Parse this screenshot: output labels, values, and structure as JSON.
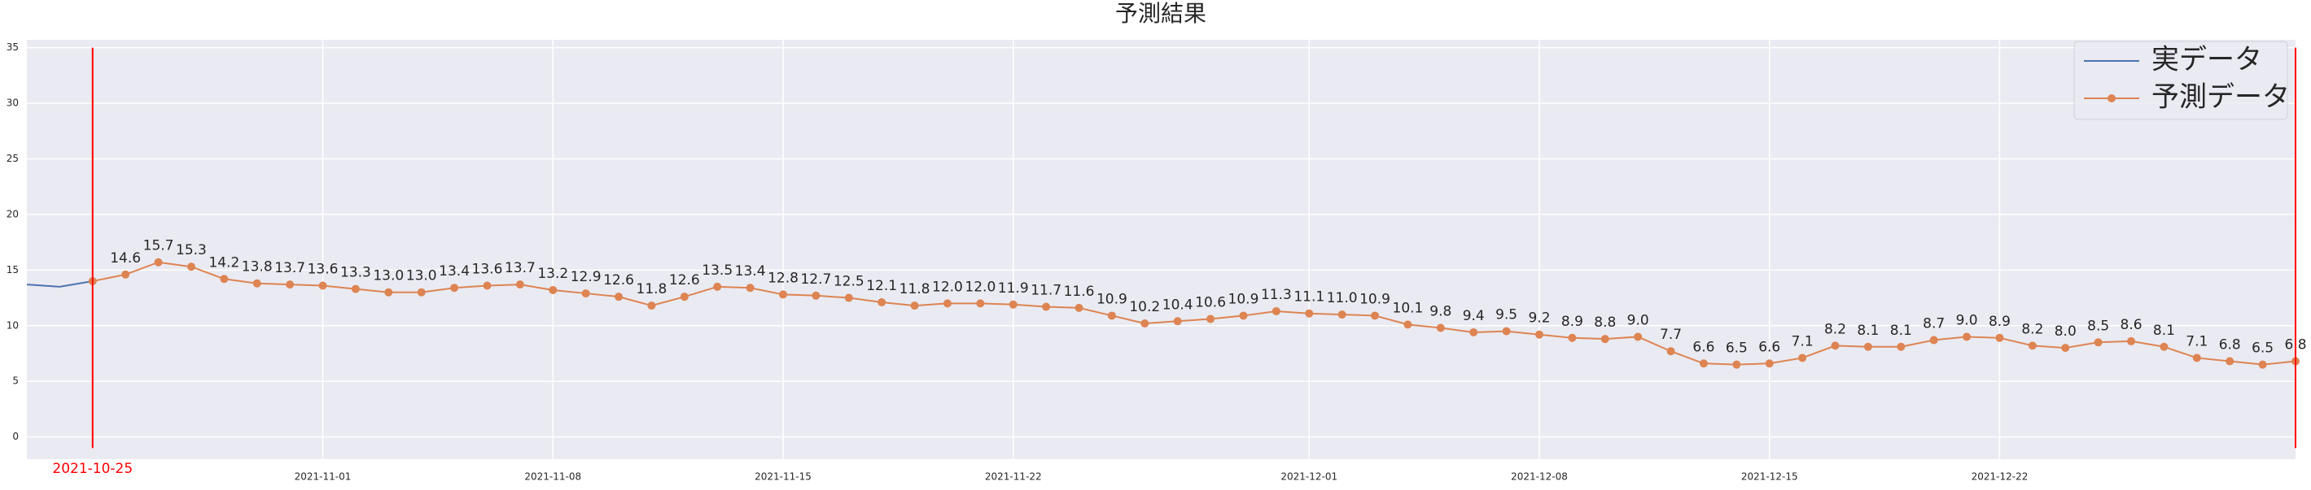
{
  "chart_data": {
    "type": "line",
    "title": "予測結果",
    "xlim": [
      "2021-10-23",
      "2021-12-31"
    ],
    "xticks": [
      "2021-11-01",
      "2021-11-08",
      "2021-11-15",
      "2021-11-22",
      "2021-12-01",
      "2021-12-08",
      "2021-12-15",
      "2021-12-22"
    ],
    "ylim": [
      -2,
      35.7
    ],
    "yticks": [
      0,
      5,
      10,
      15,
      20,
      25,
      30,
      35
    ],
    "grid": true,
    "legend": "upper right",
    "series": [
      {
        "name": "実データ",
        "color": "#4c72b0",
        "marker": false,
        "x": [
          "2021-10-23",
          "2021-10-24",
          "2021-10-25"
        ],
        "values": [
          13.7,
          13.5,
          14.0
        ]
      },
      {
        "name": "予測データ",
        "color": "#dd8452",
        "marker": true,
        "x": [
          "2021-10-25",
          "2021-10-26",
          "2021-10-27",
          "2021-10-28",
          "2021-10-29",
          "2021-10-30",
          "2021-10-31",
          "2021-11-01",
          "2021-11-02",
          "2021-11-03",
          "2021-11-04",
          "2021-11-05",
          "2021-11-06",
          "2021-11-07",
          "2021-11-08",
          "2021-11-09",
          "2021-11-10",
          "2021-11-11",
          "2021-11-12",
          "2021-11-13",
          "2021-11-14",
          "2021-11-15",
          "2021-11-16",
          "2021-11-17",
          "2021-11-18",
          "2021-11-19",
          "2021-11-20",
          "2021-11-21",
          "2021-11-22",
          "2021-11-23",
          "2021-11-24",
          "2021-11-25",
          "2021-11-26",
          "2021-11-27",
          "2021-11-28",
          "2021-11-29",
          "2021-11-30",
          "2021-12-01",
          "2021-12-02",
          "2021-12-03",
          "2021-12-04",
          "2021-12-05",
          "2021-12-06",
          "2021-12-07",
          "2021-12-08",
          "2021-12-09",
          "2021-12-10",
          "2021-12-11",
          "2021-12-12",
          "2021-12-13",
          "2021-12-14",
          "2021-12-15",
          "2021-12-16",
          "2021-12-17",
          "2021-12-18",
          "2021-12-19",
          "2021-12-20",
          "2021-12-21",
          "2021-12-22",
          "2021-12-23",
          "2021-12-24",
          "2021-12-25",
          "2021-12-26",
          "2021-12-27",
          "2021-12-28",
          "2021-12-29",
          "2021-12-30",
          "2021-12-31"
        ],
        "values": [
          14.0,
          14.6,
          15.7,
          15.3,
          14.2,
          13.8,
          13.7,
          13.6,
          13.3,
          13.0,
          13.0,
          13.4,
          13.6,
          13.7,
          13.2,
          12.9,
          12.6,
          11.8,
          12.6,
          13.5,
          13.4,
          12.8,
          12.7,
          12.5,
          12.1,
          11.8,
          12.0,
          12.0,
          11.9,
          11.7,
          11.6,
          10.9,
          10.2,
          10.4,
          10.6,
          10.9,
          11.3,
          11.1,
          11.0,
          10.9,
          10.1,
          9.8,
          9.4,
          9.5,
          9.2,
          8.9,
          8.8,
          9.0,
          7.7,
          6.6,
          6.5,
          6.6,
          7.1,
          8.2,
          8.1,
          8.1,
          8.7,
          9.0,
          8.9,
          8.2,
          8.0,
          8.5,
          8.6,
          8.1,
          7.1,
          6.8,
          6.5,
          6.8
        ],
        "value_labels": [
          null,
          "14.6",
          "15.7",
          "15.3",
          "14.2",
          "13.8",
          "13.7",
          "13.6",
          "13.3",
          "13.0",
          "13.0",
          "13.4",
          "13.6",
          "13.7",
          "13.2",
          "12.9",
          "12.6",
          "11.8",
          "12.6",
          "13.5",
          "13.4",
          "12.8",
          "12.7",
          "12.5",
          "12.1",
          "11.8",
          "12.0",
          "12.0",
          "11.9",
          "11.7",
          "11.6",
          "10.9",
          "10.2",
          "10.4",
          "10.6",
          "10.9",
          "11.3",
          "11.1",
          "11.0",
          "10.9",
          "10.1",
          "9.8",
          "9.4",
          "9.5",
          "9.2",
          "8.9",
          "8.8",
          "9.0",
          "7.7",
          "6.6",
          "6.5",
          "6.6",
          "7.1",
          "8.2",
          "8.1",
          "8.1",
          "8.7",
          "9.0",
          "8.9",
          "8.2",
          "8.0",
          "8.5",
          "8.6",
          "8.1",
          "7.1",
          "6.8",
          "6.5",
          "6.8"
        ]
      }
    ],
    "vlines": [
      {
        "x": "2021-10-25",
        "ymin": -1,
        "ymax": 35,
        "color": "#ff0000"
      },
      {
        "x": "2021-12-31",
        "ymin": -1,
        "ymax": 35,
        "color": "#ff0000"
      }
    ],
    "annotations": [
      {
        "text": "2021-10-25",
        "x": "2021-10-25",
        "color": "#ff0000"
      }
    ]
  }
}
